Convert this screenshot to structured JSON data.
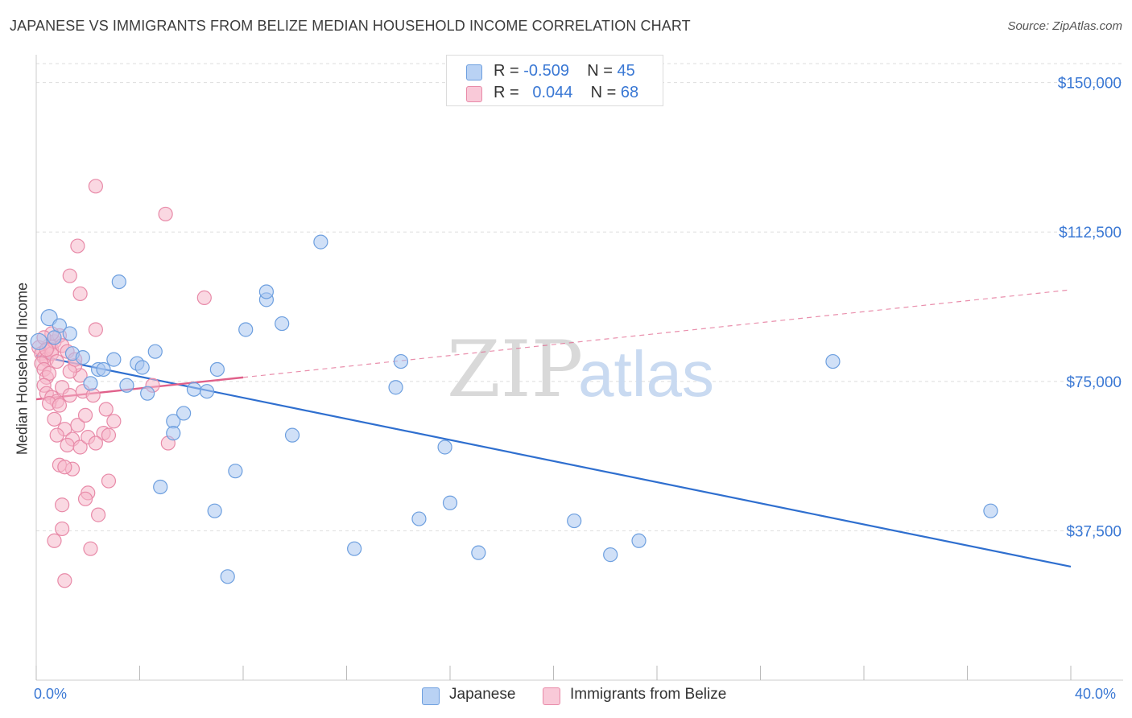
{
  "title": "JAPANESE VS IMMIGRANTS FROM BELIZE MEDIAN HOUSEHOLD INCOME CORRELATION CHART",
  "source": "Source: ZipAtlas.com",
  "watermark": {
    "zip": "ZIP",
    "atlas": "atlas"
  },
  "legend": {
    "japanese": {
      "r_label": "R = ",
      "r_value": "-0.509",
      "n_label": "N = ",
      "n_value": "45"
    },
    "belize": {
      "r_label": "R = ",
      "r_value": "0.044",
      "n_label": "N = ",
      "n_value": "68"
    }
  },
  "colors": {
    "japanese_fill": "#a9c7f0",
    "japanese_stroke": "#6d9fdf",
    "japanese_line": "#2f6fcf",
    "belize_fill": "#f6b8cb",
    "belize_stroke": "#e88aa8",
    "belize_line": "#e0608a",
    "grid": "#dddddd",
    "tick_label": "#3a78d4"
  },
  "chart_data": {
    "type": "scatter",
    "title": "JAPANESE VS IMMIGRANTS FROM BELIZE MEDIAN HOUSEHOLD INCOME CORRELATION CHART",
    "xlabel": "",
    "ylabel": "Median Household Income",
    "xlim": [
      0,
      40
    ],
    "ylim": [
      0,
      157000
    ],
    "x_tick_labels": {
      "min": "0.0%",
      "max": "40.0%"
    },
    "y_ticks": [
      37500,
      75000,
      112500,
      150000
    ],
    "y_tick_labels": [
      "$37,500",
      "$75,000",
      "$112,500",
      "$150,000"
    ],
    "series": [
      {
        "name": "Japanese",
        "trend": {
          "x": [
            0,
            40
          ],
          "y": [
            81500,
            28500
          ],
          "dashed_to": null
        },
        "points": [
          {
            "x": 0.1,
            "y": 85000
          },
          {
            "x": 0.5,
            "y": 91000
          },
          {
            "x": 0.9,
            "y": 89000
          },
          {
            "x": 1.3,
            "y": 87000
          },
          {
            "x": 0.7,
            "y": 86000
          },
          {
            "x": 1.4,
            "y": 82000
          },
          {
            "x": 1.8,
            "y": 81000
          },
          {
            "x": 2.4,
            "y": 78000
          },
          {
            "x": 2.6,
            "y": 78000
          },
          {
            "x": 3.0,
            "y": 80500
          },
          {
            "x": 2.1,
            "y": 74500
          },
          {
            "x": 3.5,
            "y": 74000
          },
          {
            "x": 3.2,
            "y": 100000
          },
          {
            "x": 3.9,
            "y": 79500
          },
          {
            "x": 4.1,
            "y": 78500
          },
          {
            "x": 4.6,
            "y": 82500
          },
          {
            "x": 4.3,
            "y": 72000
          },
          {
            "x": 5.3,
            "y": 65000
          },
          {
            "x": 5.7,
            "y": 67000
          },
          {
            "x": 5.3,
            "y": 62000
          },
          {
            "x": 6.1,
            "y": 73000
          },
          {
            "x": 6.6,
            "y": 72500
          },
          {
            "x": 7.0,
            "y": 78000
          },
          {
            "x": 8.1,
            "y": 88000
          },
          {
            "x": 8.9,
            "y": 95500
          },
          {
            "x": 8.9,
            "y": 97500
          },
          {
            "x": 9.5,
            "y": 89500
          },
          {
            "x": 11.0,
            "y": 110000
          },
          {
            "x": 4.8,
            "y": 48500
          },
          {
            "x": 6.9,
            "y": 42500
          },
          {
            "x": 7.7,
            "y": 52500
          },
          {
            "x": 7.4,
            "y": 26000
          },
          {
            "x": 9.9,
            "y": 61500
          },
          {
            "x": 12.3,
            "y": 33000
          },
          {
            "x": 14.1,
            "y": 80000
          },
          {
            "x": 13.9,
            "y": 73500
          },
          {
            "x": 14.8,
            "y": 40500
          },
          {
            "x": 15.8,
            "y": 58500
          },
          {
            "x": 16.0,
            "y": 44500
          },
          {
            "x": 17.1,
            "y": 32000
          },
          {
            "x": 20.8,
            "y": 40000
          },
          {
            "x": 22.2,
            "y": 31500
          },
          {
            "x": 23.3,
            "y": 35000
          },
          {
            "x": 30.8,
            "y": 80000
          },
          {
            "x": 36.9,
            "y": 42500
          }
        ]
      },
      {
        "name": "Immigrants from Belize",
        "trend": {
          "x": [
            0,
            8
          ],
          "y": [
            70500,
            76000
          ],
          "dashed_to": {
            "x": 40,
            "y": 98000
          }
        },
        "points": [
          {
            "x": 0.1,
            "y": 83500
          },
          {
            "x": 0.2,
            "y": 82000
          },
          {
            "x": 0.3,
            "y": 81000
          },
          {
            "x": 0.4,
            "y": 80500
          },
          {
            "x": 0.5,
            "y": 84000
          },
          {
            "x": 0.6,
            "y": 83000
          },
          {
            "x": 0.2,
            "y": 79500
          },
          {
            "x": 0.3,
            "y": 78000
          },
          {
            "x": 0.4,
            "y": 76000
          },
          {
            "x": 0.6,
            "y": 82000
          },
          {
            "x": 0.7,
            "y": 85000
          },
          {
            "x": 0.8,
            "y": 80000
          },
          {
            "x": 0.5,
            "y": 77000
          },
          {
            "x": 0.9,
            "y": 86500
          },
          {
            "x": 1.0,
            "y": 84000
          },
          {
            "x": 1.2,
            "y": 82500
          },
          {
            "x": 0.3,
            "y": 74000
          },
          {
            "x": 0.4,
            "y": 72000
          },
          {
            "x": 0.6,
            "y": 71000
          },
          {
            "x": 0.8,
            "y": 70000
          },
          {
            "x": 1.0,
            "y": 73500
          },
          {
            "x": 1.3,
            "y": 71500
          },
          {
            "x": 0.5,
            "y": 69500
          },
          {
            "x": 0.9,
            "y": 69000
          },
          {
            "x": 1.7,
            "y": 76500
          },
          {
            "x": 1.5,
            "y": 79000
          },
          {
            "x": 1.8,
            "y": 72500
          },
          {
            "x": 2.2,
            "y": 71500
          },
          {
            "x": 2.3,
            "y": 88000
          },
          {
            "x": 1.6,
            "y": 64000
          },
          {
            "x": 1.9,
            "y": 66500
          },
          {
            "x": 0.7,
            "y": 65500
          },
          {
            "x": 1.1,
            "y": 63000
          },
          {
            "x": 0.8,
            "y": 61500
          },
          {
            "x": 1.4,
            "y": 60500
          },
          {
            "x": 1.2,
            "y": 59000
          },
          {
            "x": 1.7,
            "y": 58500
          },
          {
            "x": 2.0,
            "y": 61000
          },
          {
            "x": 2.6,
            "y": 62000
          },
          {
            "x": 2.3,
            "y": 59500
          },
          {
            "x": 2.8,
            "y": 61500
          },
          {
            "x": 0.9,
            "y": 54000
          },
          {
            "x": 1.4,
            "y": 53000
          },
          {
            "x": 1.1,
            "y": 53500
          },
          {
            "x": 2.0,
            "y": 47000
          },
          {
            "x": 2.8,
            "y": 50000
          },
          {
            "x": 1.0,
            "y": 44000
          },
          {
            "x": 1.9,
            "y": 45500
          },
          {
            "x": 2.4,
            "y": 41500
          },
          {
            "x": 1.0,
            "y": 38000
          },
          {
            "x": 0.7,
            "y": 35000
          },
          {
            "x": 2.1,
            "y": 33000
          },
          {
            "x": 1.1,
            "y": 25000
          },
          {
            "x": 1.7,
            "y": 97000
          },
          {
            "x": 1.3,
            "y": 101500
          },
          {
            "x": 1.6,
            "y": 109000
          },
          {
            "x": 2.3,
            "y": 124000
          },
          {
            "x": 5.0,
            "y": 117000
          },
          {
            "x": 6.5,
            "y": 96000
          },
          {
            "x": 5.1,
            "y": 59500
          },
          {
            "x": 4.5,
            "y": 74000
          },
          {
            "x": 3.0,
            "y": 65000
          },
          {
            "x": 2.7,
            "y": 68000
          },
          {
            "x": 0.6,
            "y": 87000
          },
          {
            "x": 0.3,
            "y": 86000
          },
          {
            "x": 1.3,
            "y": 77500
          },
          {
            "x": 0.4,
            "y": 83000
          },
          {
            "x": 1.5,
            "y": 80500
          }
        ]
      }
    ]
  },
  "bottom_legend": {
    "japanese": "Japanese",
    "belize": "Immigrants from Belize"
  }
}
